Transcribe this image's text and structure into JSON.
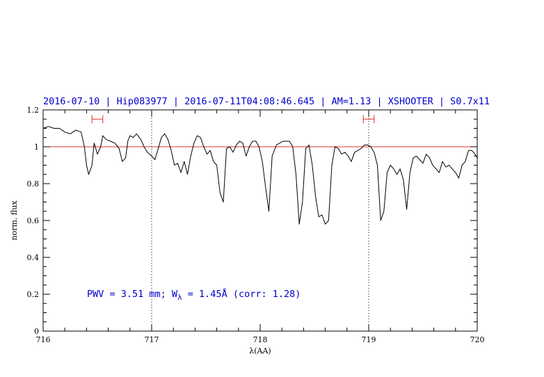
{
  "chart_data": {
    "type": "line",
    "title": "2016-07-10 | Hip083977 | 2016-07-11T04:08:46.645 | AM=1.13 | XSHOOTER | S0.7x11",
    "xlabel": "λ(AA)",
    "ylabel": "norm. flux",
    "xlim": [
      716,
      720
    ],
    "ylim": [
      0,
      1.2
    ],
    "x_ticks": [
      716,
      717,
      718,
      719,
      720
    ],
    "x_tick_labels": [
      "716",
      "717",
      "718",
      "719",
      "720"
    ],
    "y_ticks": [
      0,
      0.2,
      0.4,
      0.6,
      0.8,
      1,
      1.2
    ],
    "y_tick_labels": [
      "0",
      "0.2",
      "0.4",
      "0.6",
      "0.8",
      "1",
      "1.2"
    ],
    "reference_line": {
      "y": 1.0,
      "color": "#e03030"
    },
    "vertical_lines": [
      717.0,
      719.0
    ],
    "intervals": [
      {
        "x0": 716.45,
        "x1": 716.55,
        "y": 1.15,
        "color": "#e03030"
      },
      {
        "x0": 718.95,
        "x1": 719.05,
        "y": 1.15,
        "color": "#e03030"
      }
    ],
    "annotation": {
      "text_main": "PWV = 3.51 mm; W",
      "text_sub": "λ",
      "text_tail": " = 1.45Å (corr: 1.28)",
      "x": 716.5,
      "y": 0.2
    },
    "series": [
      {
        "color": "#000000",
        "x": [
          716.0,
          716.05,
          716.1,
          716.15,
          716.2,
          716.25,
          716.3,
          716.35,
          716.38,
          716.4,
          716.42,
          716.45,
          716.47,
          716.5,
          716.53,
          716.55,
          716.58,
          716.62,
          716.66,
          716.7,
          716.73,
          716.76,
          716.78,
          716.8,
          716.83,
          716.86,
          716.9,
          716.93,
          716.96,
          717.0,
          717.03,
          717.06,
          717.09,
          717.12,
          717.15,
          717.18,
          717.21,
          717.24,
          717.27,
          717.3,
          717.33,
          717.36,
          717.39,
          717.42,
          717.45,
          717.48,
          717.51,
          717.54,
          717.57,
          717.6,
          717.63,
          717.66,
          717.69,
          717.72,
          717.75,
          717.78,
          717.81,
          717.84,
          717.87,
          717.9,
          717.93,
          717.96,
          717.99,
          718.02,
          718.05,
          718.08,
          718.11,
          718.15,
          718.18,
          718.21,
          718.24,
          718.27,
          718.3,
          718.33,
          718.36,
          718.39,
          718.42,
          718.45,
          718.48,
          718.51,
          718.54,
          718.57,
          718.6,
          718.63,
          718.66,
          718.69,
          718.72,
          718.75,
          718.78,
          718.81,
          718.84,
          718.87,
          718.9,
          718.93,
          718.96,
          718.99,
          719.02,
          719.05,
          719.08,
          719.11,
          719.14,
          719.17,
          719.2,
          719.23,
          719.26,
          719.29,
          719.32,
          719.35,
          719.38,
          719.41,
          719.44,
          719.47,
          719.5,
          719.53,
          719.56,
          719.59,
          719.62,
          719.65,
          719.68,
          719.71,
          719.74,
          719.77,
          719.8,
          719.83,
          719.86,
          719.89,
          719.92,
          719.95,
          719.98,
          720.0
        ],
        "y": [
          1.1,
          1.11,
          1.1,
          1.1,
          1.08,
          1.07,
          1.09,
          1.08,
          1.0,
          0.9,
          0.85,
          0.9,
          1.02,
          0.96,
          1.0,
          1.06,
          1.04,
          1.03,
          1.02,
          0.99,
          0.92,
          0.94,
          1.03,
          1.06,
          1.05,
          1.07,
          1.04,
          1.0,
          0.97,
          0.95,
          0.93,
          0.99,
          1.05,
          1.07,
          1.04,
          0.98,
          0.9,
          0.91,
          0.86,
          0.92,
          0.85,
          0.95,
          1.02,
          1.06,
          1.05,
          1.0,
          0.96,
          0.98,
          0.92,
          0.9,
          0.75,
          0.7,
          0.99,
          1.0,
          0.97,
          1.01,
          1.03,
          1.02,
          0.95,
          1.0,
          1.03,
          1.03,
          1.0,
          0.92,
          0.78,
          0.65,
          0.95,
          1.01,
          1.02,
          1.03,
          1.03,
          1.03,
          1.0,
          0.85,
          0.58,
          0.7,
          0.99,
          1.01,
          0.9,
          0.73,
          0.62,
          0.63,
          0.58,
          0.6,
          0.9,
          1.0,
          0.99,
          0.96,
          0.97,
          0.95,
          0.92,
          0.97,
          0.98,
          0.99,
          1.01,
          1.01,
          1.0,
          0.97,
          0.9,
          0.6,
          0.65,
          0.86,
          0.9,
          0.88,
          0.85,
          0.88,
          0.82,
          0.66,
          0.86,
          0.94,
          0.95,
          0.93,
          0.91,
          0.96,
          0.94,
          0.9,
          0.88,
          0.86,
          0.92,
          0.89,
          0.9,
          0.88,
          0.86,
          0.83,
          0.9,
          0.92,
          0.98,
          0.98,
          0.96,
          0.94
        ]
      }
    ]
  }
}
